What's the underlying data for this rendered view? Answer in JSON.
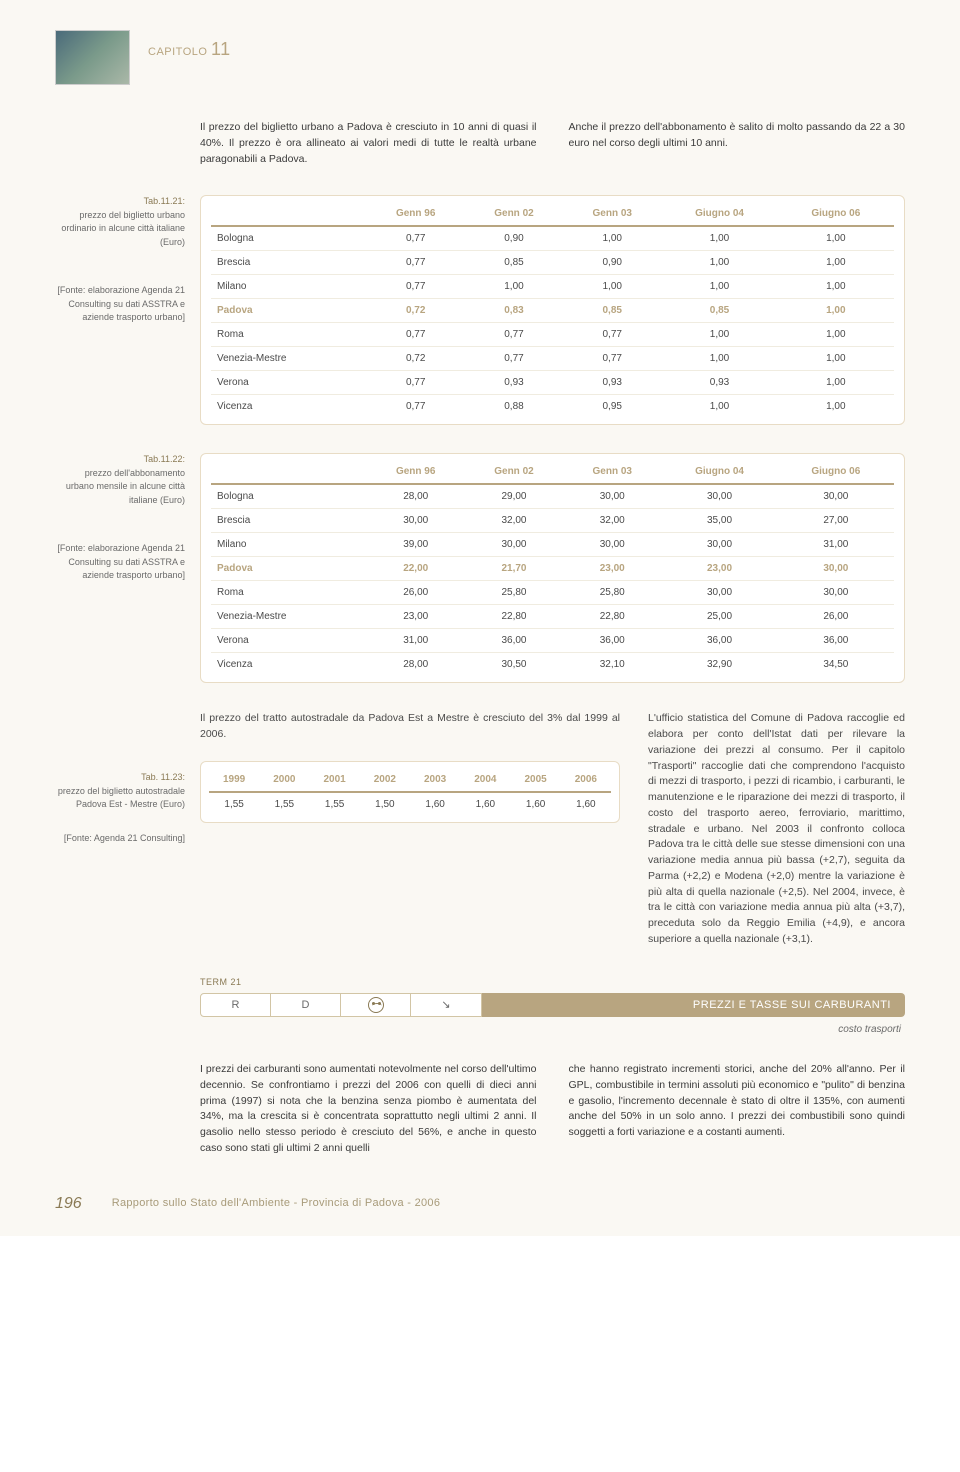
{
  "chapter_prefix": "CAPITOLO ",
  "chapter_num": "11",
  "intro_left": "Il prezzo del biglietto urbano a Padova è cresciuto in 10 anni di quasi il 40%. Il prezzo è ora allineato ai valori medi di tutte le realtà urbane paragonabili a Padova.",
  "intro_right": "Anche il prezzo dell'abbonamento è salito di molto passando da 22 a 30 euro nel corso degli ultimi 10 anni.",
  "table21": {
    "label_title": "Tab.11.21:",
    "label_desc": "prezzo del biglietto urbano ordinario in alcune città italiane (Euro)",
    "label_src": "[Fonte: elaborazione Agenda 21 Consulting su dati ASSTRA e aziende trasporto urbano]",
    "cols": [
      "",
      "Genn 96",
      "Genn 02",
      "Genn 03",
      "Giugno 04",
      "Giugno 06"
    ],
    "rows": [
      {
        "hl": false,
        "c": [
          "Bologna",
          "0,77",
          "0,90",
          "1,00",
          "1,00",
          "1,00"
        ]
      },
      {
        "hl": false,
        "c": [
          "Brescia",
          "0,77",
          "0,85",
          "0,90",
          "1,00",
          "1,00"
        ]
      },
      {
        "hl": false,
        "c": [
          "Milano",
          "0,77",
          "1,00",
          "1,00",
          "1,00",
          "1,00"
        ]
      },
      {
        "hl": true,
        "c": [
          "Padova",
          "0,72",
          "0,83",
          "0,85",
          "0,85",
          "1,00"
        ]
      },
      {
        "hl": false,
        "c": [
          "Roma",
          "0,77",
          "0,77",
          "0,77",
          "1,00",
          "1,00"
        ]
      },
      {
        "hl": false,
        "c": [
          "Venezia-Mestre",
          "0,72",
          "0,77",
          "0,77",
          "1,00",
          "1,00"
        ]
      },
      {
        "hl": false,
        "c": [
          "Verona",
          "0,77",
          "0,93",
          "0,93",
          "0,93",
          "1,00"
        ]
      },
      {
        "hl": false,
        "c": [
          "Vicenza",
          "0,77",
          "0,88",
          "0,95",
          "1,00",
          "1,00"
        ]
      }
    ]
  },
  "table22": {
    "label_title": "Tab.11.22:",
    "label_desc": "prezzo dell'abbonamento urbano mensile in alcune città italiane (Euro)",
    "label_src": "[Fonte: elaborazione Agenda 21 Consulting su dati ASSTRA e aziende trasporto urbano]",
    "cols": [
      "",
      "Genn 96",
      "Genn 02",
      "Genn 03",
      "Giugno 04",
      "Giugno 06"
    ],
    "rows": [
      {
        "hl": false,
        "c": [
          "Bologna",
          "28,00",
          "29,00",
          "30,00",
          "30,00",
          "30,00"
        ]
      },
      {
        "hl": false,
        "c": [
          "Brescia",
          "30,00",
          "32,00",
          "32,00",
          "35,00",
          "27,00"
        ]
      },
      {
        "hl": false,
        "c": [
          "Milano",
          "39,00",
          "30,00",
          "30,00",
          "30,00",
          "31,00"
        ]
      },
      {
        "hl": true,
        "c": [
          "Padova",
          "22,00",
          "21,70",
          "23,00",
          "23,00",
          "30,00"
        ]
      },
      {
        "hl": false,
        "c": [
          "Roma",
          "26,00",
          "25,80",
          "25,80",
          "30,00",
          "30,00"
        ]
      },
      {
        "hl": false,
        "c": [
          "Venezia-Mestre",
          "23,00",
          "22,80",
          "22,80",
          "25,00",
          "26,00"
        ]
      },
      {
        "hl": false,
        "c": [
          "Verona",
          "31,00",
          "36,00",
          "36,00",
          "36,00",
          "36,00"
        ]
      },
      {
        "hl": false,
        "c": [
          "Vicenza",
          "28,00",
          "30,50",
          "32,10",
          "32,90",
          "34,50"
        ]
      }
    ]
  },
  "table23": {
    "label_title": "Tab. 11.23:",
    "label_desc": "prezzo del biglietto autostradale Padova Est - Mestre (Euro)",
    "label_src": "[Fonte: Agenda 21 Consulting]",
    "intro": "Il prezzo del tratto autostradale da Padova Est a Mestre è cresciuto del 3% dal 1999 al 2006.",
    "cols": [
      "1999",
      "2000",
      "2001",
      "2002",
      "2003",
      "2004",
      "2005",
      "2006"
    ],
    "row": [
      "1,55",
      "1,55",
      "1,55",
      "1,50",
      "1,60",
      "1,60",
      "1,60",
      "1,60"
    ],
    "right_text": "L'ufficio statistica del Comune di Padova raccoglie ed elabora per conto dell'Istat dati per rilevare la variazione dei prezzi al consumo. Per il capitolo \"Trasporti\" raccoglie dati che comprendono l'acquisto di mezzi di trasporto, i pezzi di ricambio, i carburanti, le manutenzione e le riparazione dei mezzi di trasporto, il costo del trasporto aereo, ferroviario, marittimo, stradale e urbano. Nel 2003 il confronto colloca Padova tra le città delle sue stesse dimensioni con una variazione media annua più bassa (+2,7), seguita da Parma (+2,2) e Modena (+2,0) mentre la variazione è più alta di quella nazionale (+2,5). Nel 2004, invece, è tra le città con variazione media annua più alta (+3,7), preceduta solo da Reggio Emilia (+4,9), e ancora superiore a quella nazionale (+3,1)."
  },
  "term": {
    "label": "TERM 21",
    "cells": [
      "R",
      "D",
      "face",
      "↘"
    ],
    "banner": "PREZZI E TASSE SUI CARBURANTI",
    "sub": "costo trasporti"
  },
  "bottom_left": "I prezzi dei carburanti sono aumentati notevolmente nel corso dell'ultimo decennio. Se confrontiamo i prezzi del 2006 con quelli di dieci anni prima (1997) si nota che la benzina senza piombo è aumentata del 34%, ma la crescita si è concentrata soprattutto negli ultimi 2 anni. Il gasolio nello stesso periodo è cresciuto del 56%, e anche in questo caso sono stati gli ultimi 2 anni quelli",
  "bottom_right": "che hanno registrato incrementi storici, anche del 20% all'anno. Per il GPL, combustibile in termini assoluti più economico e \"pulito\" di benzina e gasolio, l'incremento decennale è stato di oltre il 135%, con aumenti anche del 50% in un solo anno. I prezzi dei combustibili sono quindi soggetti a forti variazione e a costanti aumenti.",
  "page_num": "196",
  "footer_title": "Rapporto sullo Stato dell'Ambiente - Provincia di Padova - 2006"
}
